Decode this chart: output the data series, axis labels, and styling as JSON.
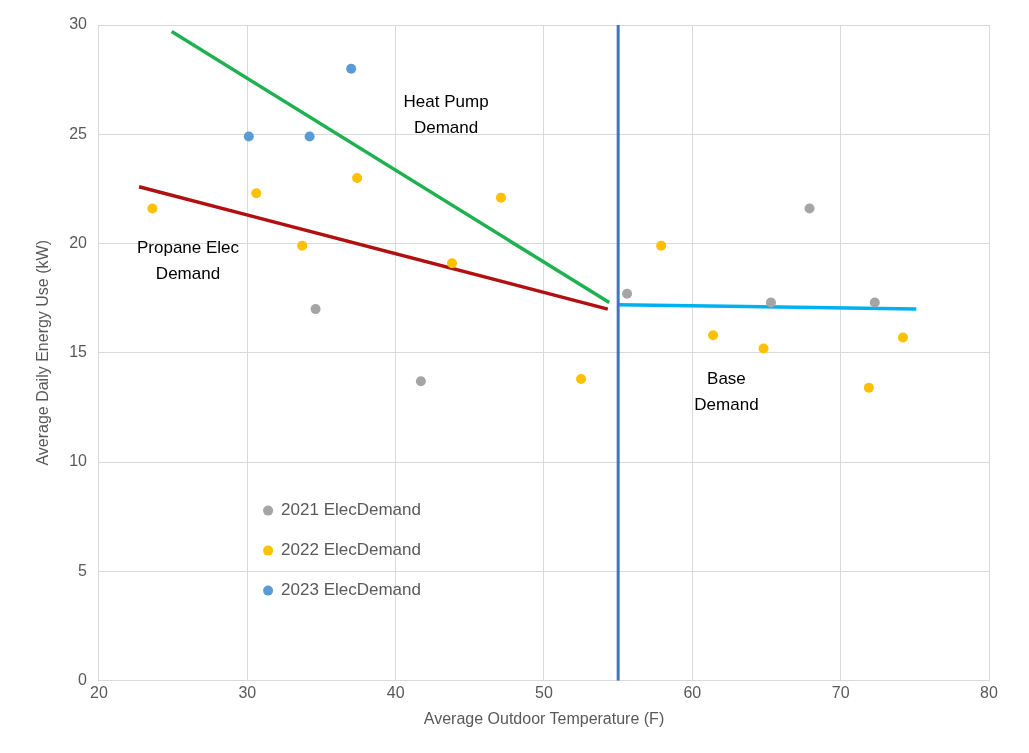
{
  "chart_data": {
    "type": "scatter",
    "xlabel": "Average Outdoor Temperature (F)",
    "ylabel": "Average Daily Energy Use (kW)",
    "xlim": [
      20,
      80
    ],
    "xticks": [
      20,
      30,
      40,
      50,
      60,
      70,
      80
    ],
    "ylim": [
      0,
      30
    ],
    "yticks": [
      0,
      5,
      10,
      15,
      20,
      25,
      30
    ],
    "grid": true,
    "legend": "bottom left",
    "series": [
      {
        "name": "2021 ElecDemand",
        "marker": "circle",
        "color": "#a5a5a5",
        "x": [
          55.6,
          34.6,
          41.7,
          65.3,
          67.9,
          72.3
        ],
        "values": [
          17.7,
          17.0,
          13.7,
          17.3,
          21.6,
          17.3
        ]
      },
      {
        "name": "2022 ElecDemand",
        "marker": "circle",
        "color": "#ffc000",
        "x": [
          23.6,
          30.6,
          33.7,
          37.4,
          43.8,
          47.1,
          52.5,
          57.9,
          61.4,
          64.8,
          71.9,
          74.2
        ],
        "values": [
          21.6,
          22.3,
          19.9,
          23.0,
          19.1,
          22.1,
          13.8,
          19.9,
          15.8,
          15.2,
          13.4,
          15.7
        ]
      },
      {
        "name": "2023 ElecDemand",
        "marker": "circle",
        "color": "#5b9bd5",
        "x": [
          30.1,
          34.2,
          37.0
        ],
        "values": [
          24.9,
          24.9,
          28.0
        ]
      },
      {
        "type": "line",
        "marker": "none",
        "color": "#1fb04f",
        "x": [
          24.9,
          54.4
        ],
        "values": [
          29.7,
          17.3
        ]
      },
      {
        "type": "line",
        "marker": "none",
        "color": "#b01010",
        "x": [
          22.7,
          54.3
        ],
        "values": [
          22.6,
          17.0
        ]
      },
      {
        "type": "line",
        "marker": "none",
        "color": "#00b0f0",
        "x": [
          55.0,
          75.1
        ],
        "values": [
          17.2,
          17.0
        ]
      }
    ],
    "ref_lines": [
      {
        "axis": "x",
        "value": 55,
        "color": "#4472c4"
      }
    ],
    "annotations": [
      "Heat Pump\nDemand",
      "Propane Elec\nDemand",
      "Base\nDemand"
    ]
  }
}
